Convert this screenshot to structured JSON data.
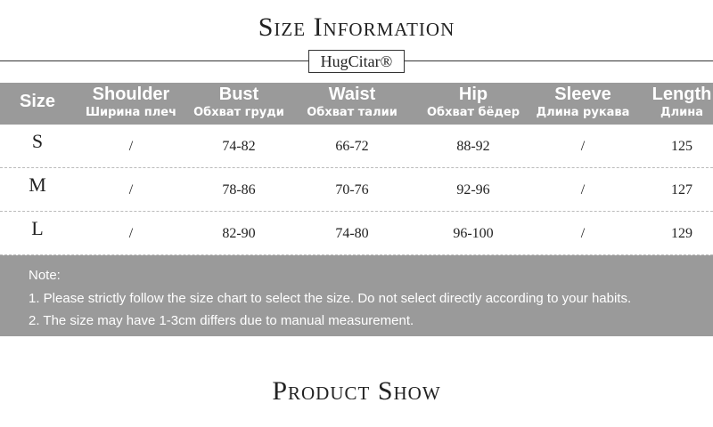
{
  "header": {
    "title": "Size Information",
    "brand": "HugCitar®"
  },
  "table": {
    "columns": [
      {
        "name": "Size"
      },
      {
        "name": "Shoulder",
        "sub": "Ширина плеч"
      },
      {
        "name": "Bust",
        "sub": "Обхват груди"
      },
      {
        "name": "Waist",
        "sub": "Обхват талии"
      },
      {
        "name": "Hip",
        "sub": "Обхват бёдер"
      },
      {
        "name": "Sleeve",
        "sub": "Длина рукава"
      },
      {
        "name": "Length",
        "sub": "Длина"
      }
    ],
    "rows": [
      [
        "S",
        "/",
        "74-82",
        "66-72",
        "88-92",
        "/",
        125
      ],
      [
        "M",
        "/",
        "78-86",
        "70-76",
        "92-96",
        "/",
        127
      ],
      [
        "L",
        "/",
        "82-90",
        "74-80",
        "96-100",
        "/",
        129
      ]
    ]
  },
  "notes": {
    "title": "Note:",
    "items": [
      "1. Please strictly follow the size chart to select the size. Do not select directly according to your habits.",
      "2. The size may have 1-3cm differs due to manual measurement."
    ]
  },
  "footer": {
    "title": "Product Show"
  }
}
